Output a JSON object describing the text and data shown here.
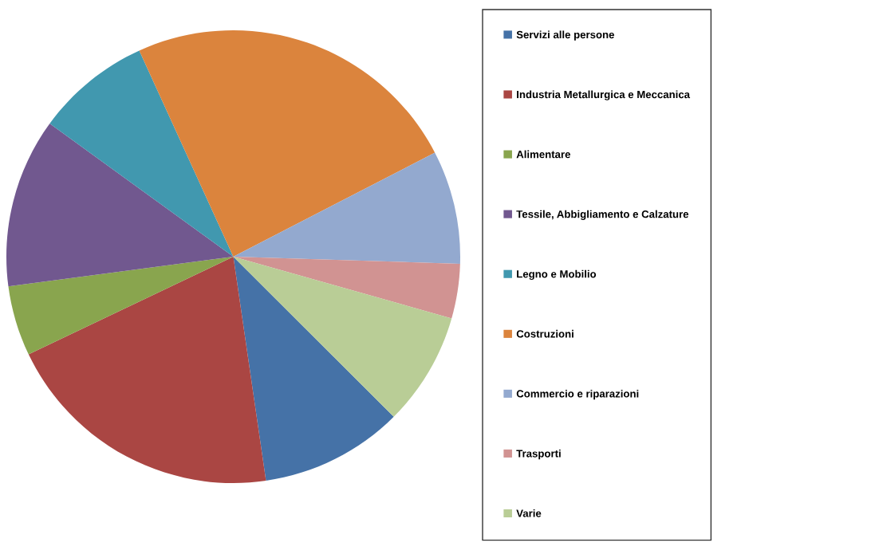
{
  "chart_data": {
    "type": "pie",
    "categories": [
      "Servizi alle persone",
      "Industria Metallurgica e Meccanica",
      "Alimentare",
      "Tessile, Abbigliamento e Calzature",
      "Legno e Mobilio",
      "Costruzioni",
      "Commercio e riparazioni",
      "Trasporti",
      "Varie"
    ],
    "values": [
      10.2,
      20.2,
      5.0,
      12.1,
      8.2,
      24.2,
      8.1,
      3.9,
      8.1
    ],
    "colors": [
      "#4572a7",
      "#aa4643",
      "#89a54e",
      "#71588f",
      "#4198af",
      "#db843d",
      "#93a9cf",
      "#d19392",
      "#b9cd96"
    ],
    "legend": "right"
  }
}
